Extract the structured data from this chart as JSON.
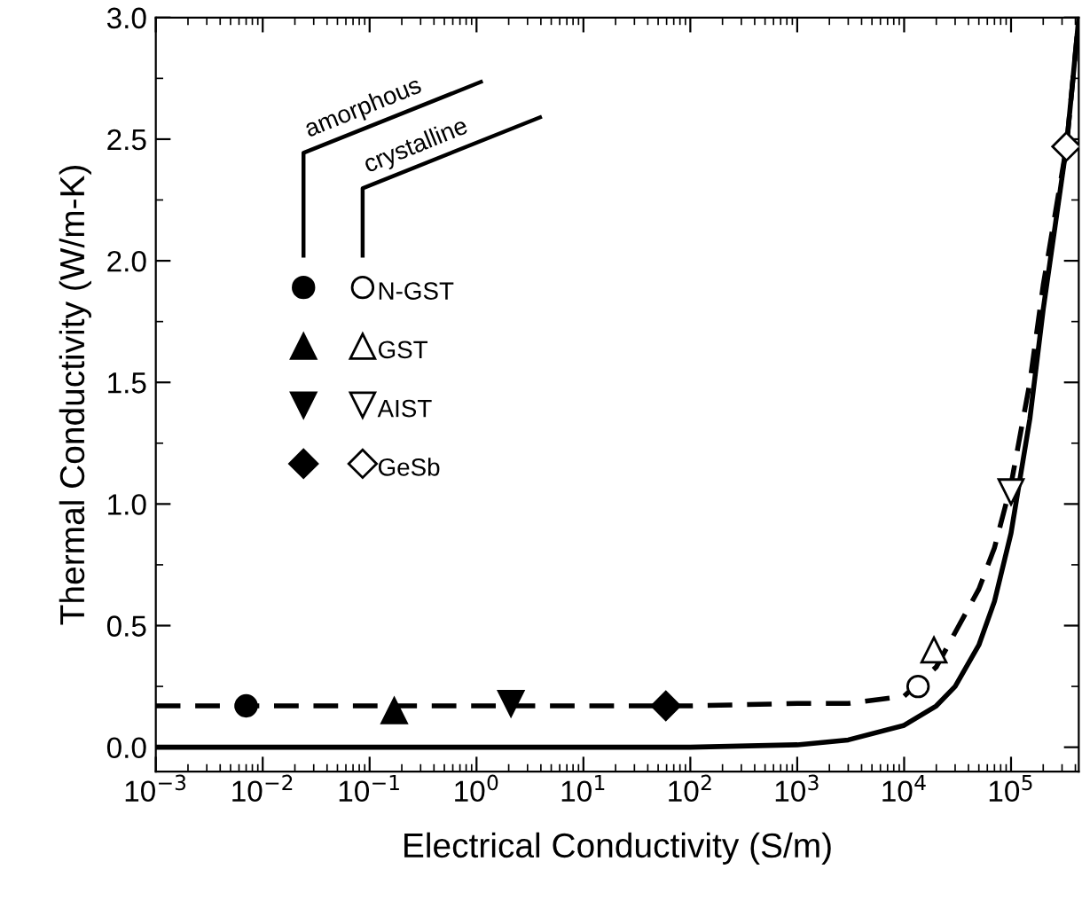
{
  "chart_data": {
    "type": "scatter",
    "xlabel": "Electrical Conductivity (S/m)",
    "ylabel": "Thermal Conductivity (W/m-K)",
    "log": "x",
    "xlim": [
      0.001,
      430000
    ],
    "ylim": [
      -0.1,
      3.0
    ],
    "xticks": [
      {
        "value": 0.001,
        "label": "10$^{−3}$"
      },
      {
        "value": 0.01,
        "label": "10$^{−2}$"
      },
      {
        "value": 0.1,
        "label": "10$^{−1}$"
      },
      {
        "value": 1,
        "label": "10$^{0}$"
      },
      {
        "value": 10,
        "label": "10$^{1}$"
      },
      {
        "value": 100,
        "label": "10$^{2}$"
      },
      {
        "value": 1000,
        "label": "10$^{3}$"
      },
      {
        "value": 10000,
        "label": "10$^{4}$"
      },
      {
        "value": 100000,
        "label": "10$^{5}$"
      }
    ],
    "yticks": [
      {
        "value": 0,
        "label": "0.0"
      },
      0.5,
      {
        "value": 1,
        "label": "1.0"
      },
      1.5,
      {
        "value": 2,
        "label": "2.0"
      },
      2.5,
      {
        "value": 3,
        "label": "3.0"
      }
    ],
    "grid": false,
    "legend": "left",
    "annotations": [
      "amorphous",
      "crystalline"
    ],
    "series": [
      {
        "type": "line",
        "color": "#000000",
        "marker": "none",
        "line_style": "solid",
        "x": [
          0.001,
          1,
          100,
          1000,
          3000,
          10000,
          20000,
          30000,
          50000,
          70000,
          100000,
          150000,
          200000,
          330000,
          430000
        ],
        "values": [
          0.0,
          0.0,
          0.0,
          0.01,
          0.03,
          0.09,
          0.17,
          0.25,
          0.42,
          0.6,
          0.88,
          1.35,
          1.8,
          2.47,
          3.0
        ]
      },
      {
        "type": "line",
        "color": "#000000",
        "marker": "none",
        "line_style": "dashed",
        "x": [
          0.001,
          1,
          100,
          1000,
          3000,
          10000,
          20000,
          50000,
          70000,
          100000,
          150000,
          200000,
          330000,
          420000
        ],
        "values": [
          0.17,
          0.17,
          0.17,
          0.18,
          0.18,
          0.21,
          0.33,
          0.65,
          0.82,
          1.08,
          1.5,
          1.9,
          2.47,
          2.95
        ]
      },
      {
        "color": "#000000",
        "marker": "circle",
        "x": [
          0.007
        ],
        "values": [
          0.17
        ]
      },
      {
        "name": "N-GST",
        "color": "#ffffff",
        "marker": "circle",
        "x": [
          13500
        ],
        "values": [
          0.25
        ]
      },
      {
        "color": "#000000",
        "marker": "triangle",
        "x": [
          0.17
        ],
        "values": [
          0.15
        ]
      },
      {
        "name": "GST",
        "color": "#ffffff",
        "marker": "triangle",
        "x": [
          19000
        ],
        "values": [
          0.4
        ]
      },
      {
        "color": "#000000",
        "marker": "triangle_down",
        "x": [
          2.1
        ],
        "values": [
          0.18
        ]
      },
      {
        "name": "AIST",
        "color": "#ffffff",
        "marker": "triangle_down",
        "x": [
          100000
        ],
        "values": [
          1.05
        ]
      },
      {
        "color": "#000000",
        "marker": "diamond",
        "x": [
          59
        ],
        "values": [
          0.17
        ]
      },
      {
        "name": "GeSb",
        "color": "#ffffff",
        "marker": "diamond",
        "x": [
          330000
        ],
        "values": [
          2.47
        ]
      }
    ]
  }
}
